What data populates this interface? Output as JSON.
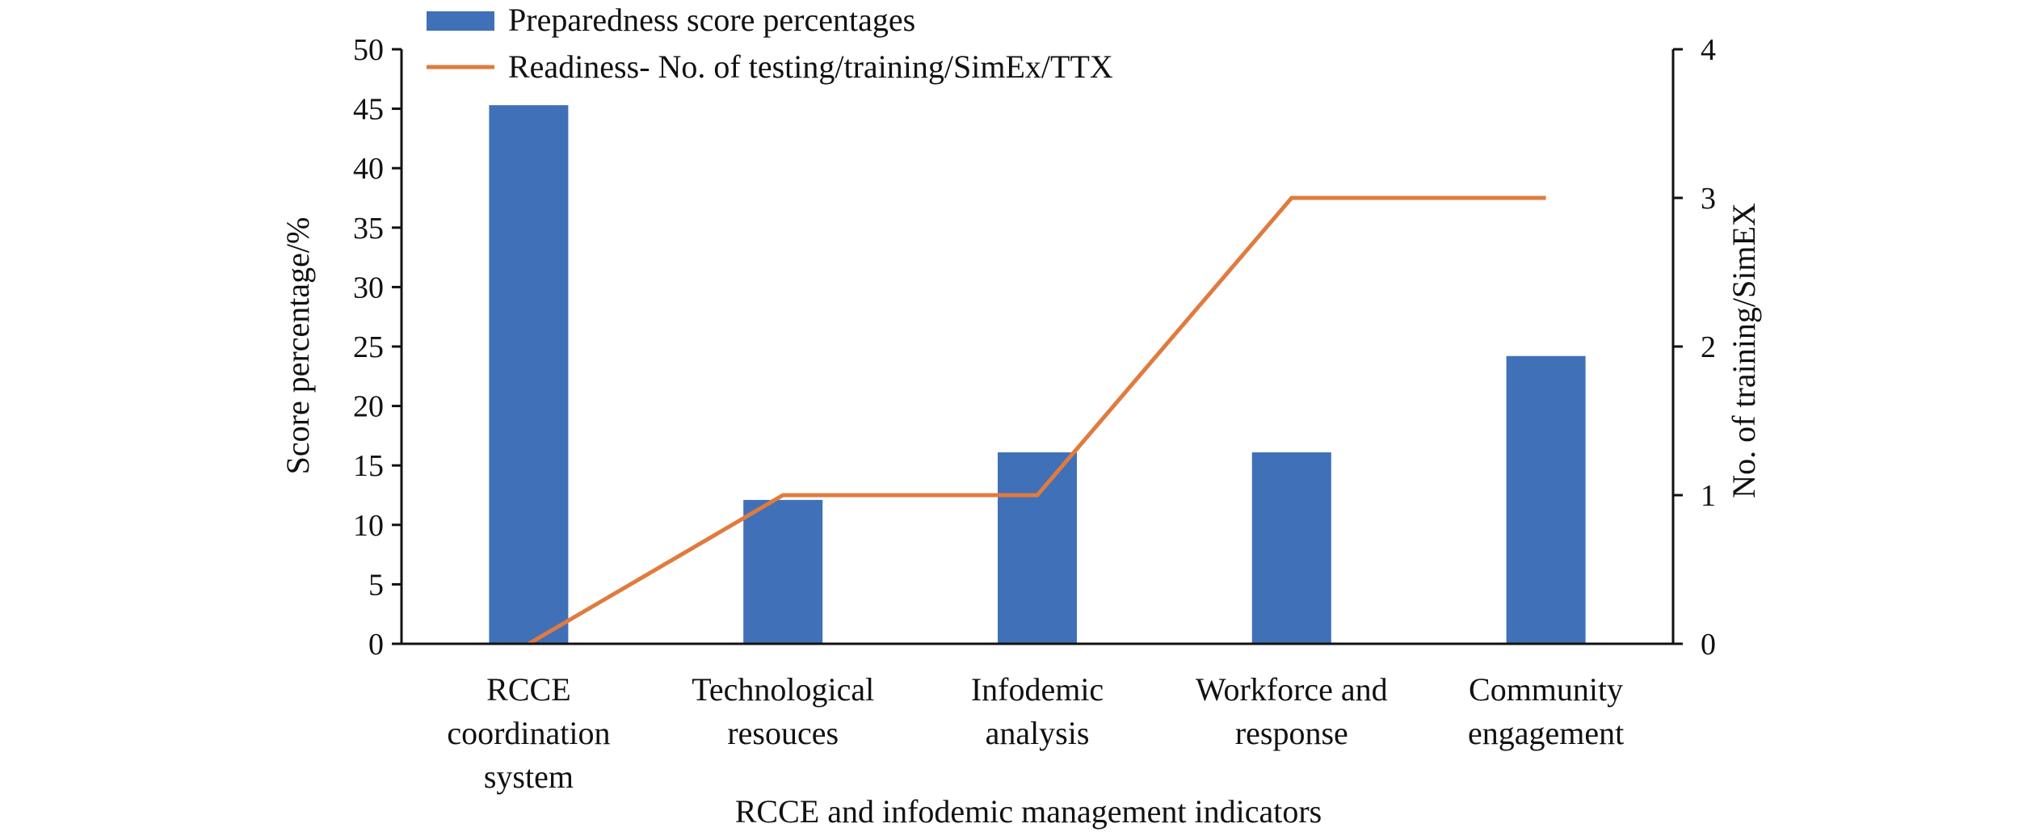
{
  "chart_data": {
    "type": "bar",
    "categories": [
      [
        "RCCE",
        "coordination",
        "system"
      ],
      [
        "Technological",
        "resouces"
      ],
      [
        "Infodemic",
        "analysis"
      ],
      [
        "Workforce and",
        "response"
      ],
      [
        "Community",
        "engagement"
      ]
    ],
    "series": [
      {
        "name": "Preparedness score percentages",
        "type": "bar",
        "axis": "left",
        "values": [
          45.3,
          12.1,
          16.1,
          16.1,
          24.2
        ],
        "color": "#4070B8"
      },
      {
        "name": "Readiness- No. of testing/training/SimEx/TTX",
        "type": "line",
        "axis": "right",
        "values": [
          0,
          1,
          1,
          3,
          3
        ],
        "color": "#E07B3F"
      }
    ],
    "xlabel": "RCCE and infodemic management indicators",
    "ylabel": "Score percentage/%",
    "y2label": "No. of training/SimEX",
    "ylim": [
      0,
      50
    ],
    "yticks": [
      "0",
      "5",
      "10",
      "15",
      "20",
      "25",
      "30",
      "35",
      "40",
      "45",
      "50"
    ],
    "y2lim": [
      0,
      4
    ],
    "y2ticks": [
      "0",
      "1",
      "2",
      "3",
      "4"
    ],
    "legend": "top-left",
    "grid": false
  }
}
